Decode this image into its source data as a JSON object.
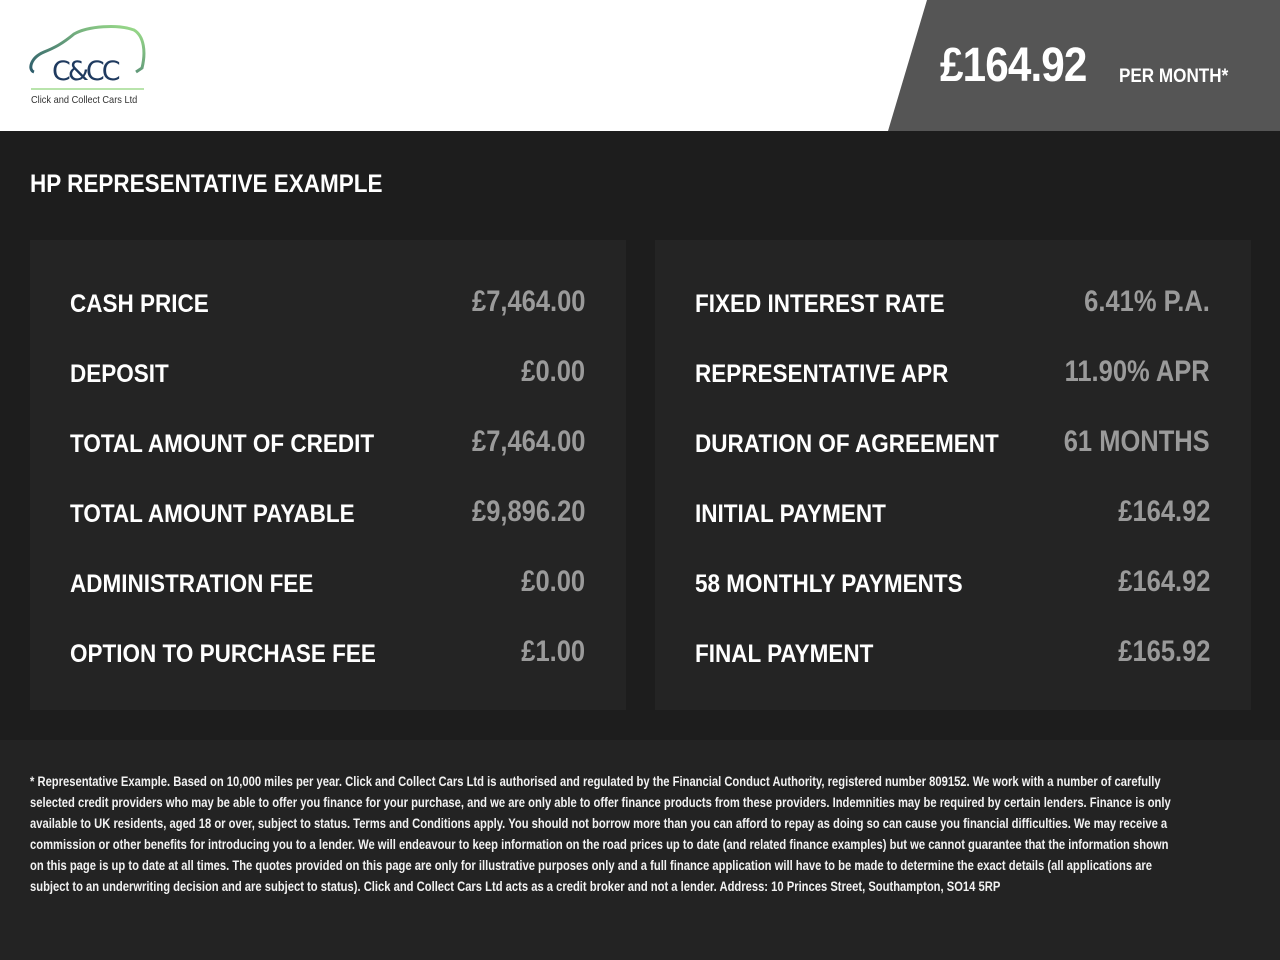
{
  "header": {
    "logo_text": "C&CC",
    "company_name": "Click and Collect Cars Ltd",
    "monthly_price": "£164.92",
    "per_month_label": "PER MONTH*"
  },
  "main": {
    "title": "HP REPRESENTATIVE EXAMPLE",
    "left_panel": [
      {
        "label": "CASH PRICE",
        "value": "£7,464.00"
      },
      {
        "label": "DEPOSIT",
        "value": "£0.00"
      },
      {
        "label": "TOTAL AMOUNT OF CREDIT",
        "value": "£7,464.00"
      },
      {
        "label": "TOTAL AMOUNT PAYABLE",
        "value": "£9,896.20"
      },
      {
        "label": "ADMINISTRATION FEE",
        "value": "£0.00"
      },
      {
        "label": "OPTION TO PURCHASE FEE",
        "value": "£1.00"
      }
    ],
    "right_panel": [
      {
        "label": "FIXED INTEREST RATE",
        "value": "6.41% P.A."
      },
      {
        "label": "REPRESENTATIVE APR",
        "value": "11.90% APR"
      },
      {
        "label": "DURATION OF AGREEMENT",
        "value": "61 MONTHS"
      },
      {
        "label": "INITIAL PAYMENT",
        "value": "£164.92"
      },
      {
        "label": "58 MONTHLY PAYMENTS",
        "value": "£164.92"
      },
      {
        "label": "FINAL PAYMENT",
        "value": "£165.92"
      }
    ]
  },
  "footer": {
    "disclaimer": "* Representative Example. Based on 10,000 miles per year. Click and Collect Cars Ltd is authorised and regulated by the Financial Conduct Authority, registered number 809152. We work with a number of carefully selected credit providers who may be able to offer you finance for your purchase, and we are only able to offer finance products from these providers. Indemnities may be required by certain lenders. Finance is only available to UK residents, aged 18 or over, subject to status. Terms and Conditions apply. You should not borrow more than you can afford to repay as doing so can cause you financial difficulties. We may receive a commission or other benefits for introducing you to a lender. We will endeavour to keep information on the road prices up to date (and related finance examples) but we cannot guarantee that the information shown on this page is up to date at all times. The quotes provided on this page are only for illustrative purposes only and a full finance application will have to be made to determine the exact details (all applications are subject to an underwriting decision and are subject to status). Click and Collect Cars Ltd acts as a credit broker and not a lender. Address: 10 Princes Street, Southampton, SO14 5RP"
  },
  "colors": {
    "logo_green": "#8fd37a",
    "logo_navy": "#1f3a5f",
    "price_panel": "#555555",
    "value_grey": "#9a9a9a"
  }
}
